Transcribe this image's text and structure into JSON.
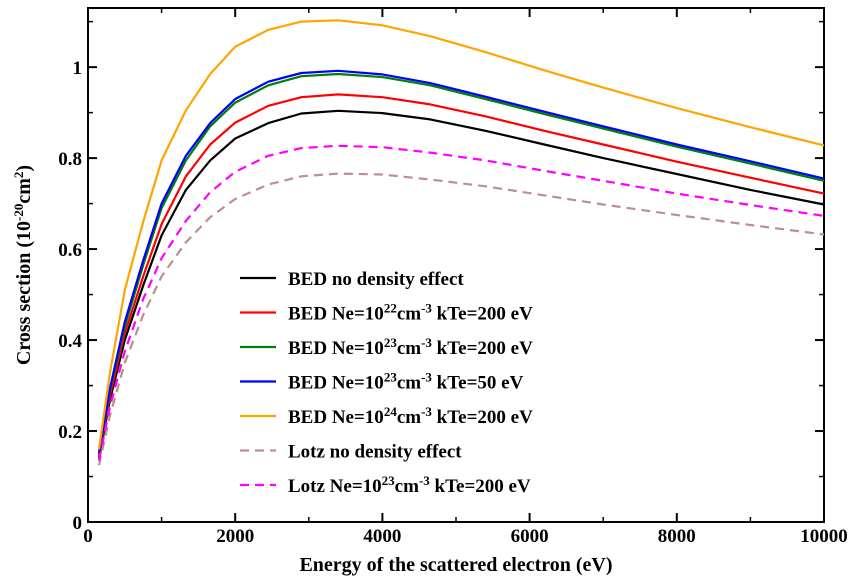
{
  "chart_data": {
    "type": "line",
    "title": "",
    "xlabel": "Energy of the scattered electron (eV)",
    "ylabel_parts": [
      {
        "text": "Cross section (10",
        "sup": false
      },
      {
        "text": "-20",
        "sup": true
      },
      {
        "text": "cm",
        "sup": false
      },
      {
        "text": "2",
        "sup": true
      },
      {
        "text": ")",
        "sup": false
      }
    ],
    "xlim": [
      0,
      10000
    ],
    "ylim": [
      0,
      1.13
    ],
    "x_ticks": [
      0,
      2000,
      4000,
      6000,
      8000,
      10000
    ],
    "x_tick_labels": [
      "0",
      "2000",
      "4000",
      "6000",
      "8000",
      "10000"
    ],
    "y_ticks": [
      0,
      0.2,
      0.4,
      0.6,
      0.8,
      1.0
    ],
    "y_tick_labels": [
      "0",
      "0.2",
      "0.4",
      "0.6",
      "0.8",
      "1"
    ],
    "grid": false,
    "legend_position": "center-left",
    "series": [
      {
        "label_parts": [
          {
            "text": "BED no density effect",
            "sup": false
          }
        ],
        "color": "#000000",
        "dash": "solid",
        "points": [
          [
            150,
            0.14
          ],
          [
            300,
            0.27
          ],
          [
            500,
            0.4
          ],
          [
            750,
            0.52
          ],
          [
            1000,
            0.63
          ],
          [
            1330,
            0.73
          ],
          [
            1660,
            0.795
          ],
          [
            2000,
            0.843
          ],
          [
            2450,
            0.877
          ],
          [
            2900,
            0.898
          ],
          [
            3400,
            0.904
          ],
          [
            4000,
            0.899
          ],
          [
            4650,
            0.885
          ],
          [
            5400,
            0.86
          ],
          [
            6200,
            0.83
          ],
          [
            7000,
            0.8
          ],
          [
            8000,
            0.765
          ],
          [
            9000,
            0.73
          ],
          [
            10000,
            0.698
          ]
        ]
      },
      {
        "label_parts": [
          {
            "text": "BED Ne=10",
            "sup": false
          },
          {
            "text": "22",
            "sup": true
          },
          {
            "text": "cm",
            "sup": false
          },
          {
            "text": "-3",
            "sup": true
          },
          {
            "text": " kTe=200 eV",
            "sup": false
          }
        ],
        "color": "#ff0000",
        "dash": "solid",
        "points": [
          [
            150,
            0.145
          ],
          [
            300,
            0.28
          ],
          [
            500,
            0.415
          ],
          [
            750,
            0.54
          ],
          [
            1000,
            0.655
          ],
          [
            1330,
            0.76
          ],
          [
            1660,
            0.83
          ],
          [
            2000,
            0.878
          ],
          [
            2450,
            0.915
          ],
          [
            2900,
            0.934
          ],
          [
            3400,
            0.94
          ],
          [
            4000,
            0.934
          ],
          [
            4650,
            0.918
          ],
          [
            5400,
            0.892
          ],
          [
            6200,
            0.86
          ],
          [
            7000,
            0.83
          ],
          [
            8000,
            0.792
          ],
          [
            9000,
            0.757
          ],
          [
            10000,
            0.722
          ]
        ]
      },
      {
        "label_parts": [
          {
            "text": "BED Ne=10",
            "sup": false
          },
          {
            "text": "23",
            "sup": true
          },
          {
            "text": "cm",
            "sup": false
          },
          {
            "text": "-3",
            "sup": true
          },
          {
            "text": " kTe=200 eV",
            "sup": false
          }
        ],
        "color": "#008000",
        "dash": "solid",
        "points": [
          [
            150,
            0.15
          ],
          [
            300,
            0.29
          ],
          [
            500,
            0.43
          ],
          [
            750,
            0.565
          ],
          [
            1000,
            0.69
          ],
          [
            1330,
            0.795
          ],
          [
            1660,
            0.87
          ],
          [
            2000,
            0.922
          ],
          [
            2450,
            0.96
          ],
          [
            2900,
            0.98
          ],
          [
            3400,
            0.985
          ],
          [
            4000,
            0.978
          ],
          [
            4650,
            0.96
          ],
          [
            5400,
            0.93
          ],
          [
            6200,
            0.897
          ],
          [
            7000,
            0.865
          ],
          [
            8000,
            0.825
          ],
          [
            9000,
            0.788
          ],
          [
            10000,
            0.75
          ]
        ]
      },
      {
        "label_parts": [
          {
            "text": "BED Ne=10",
            "sup": false
          },
          {
            "text": "23",
            "sup": true
          },
          {
            "text": "cm",
            "sup": false
          },
          {
            "text": "-3",
            "sup": true
          },
          {
            "text": " kTe=50 eV",
            "sup": false
          }
        ],
        "color": "#0000ff",
        "dash": "solid",
        "points": [
          [
            150,
            0.152
          ],
          [
            300,
            0.295
          ],
          [
            500,
            0.44
          ],
          [
            750,
            0.575
          ],
          [
            1000,
            0.7
          ],
          [
            1330,
            0.805
          ],
          [
            1660,
            0.877
          ],
          [
            2000,
            0.93
          ],
          [
            2450,
            0.968
          ],
          [
            2900,
            0.987
          ],
          [
            3400,
            0.992
          ],
          [
            4000,
            0.984
          ],
          [
            4650,
            0.965
          ],
          [
            5400,
            0.935
          ],
          [
            6200,
            0.902
          ],
          [
            7000,
            0.87
          ],
          [
            8000,
            0.83
          ],
          [
            9000,
            0.793
          ],
          [
            10000,
            0.755
          ]
        ]
      },
      {
        "label_parts": [
          {
            "text": "BED Ne=10",
            "sup": false
          },
          {
            "text": "24",
            "sup": true
          },
          {
            "text": "cm",
            "sup": false
          },
          {
            "text": "-3",
            "sup": true
          },
          {
            "text": " kTe=200 eV",
            "sup": false
          }
        ],
        "color": "#ffa500",
        "dash": "solid",
        "points": [
          [
            150,
            0.16
          ],
          [
            300,
            0.33
          ],
          [
            500,
            0.51
          ],
          [
            750,
            0.66
          ],
          [
            1000,
            0.795
          ],
          [
            1330,
            0.905
          ],
          [
            1660,
            0.985
          ],
          [
            2000,
            1.045
          ],
          [
            2450,
            1.082
          ],
          [
            2900,
            1.1
          ],
          [
            3400,
            1.103
          ],
          [
            4000,
            1.092
          ],
          [
            4650,
            1.068
          ],
          [
            5400,
            1.033
          ],
          [
            6200,
            0.993
          ],
          [
            7000,
            0.955
          ],
          [
            8000,
            0.91
          ],
          [
            9000,
            0.868
          ],
          [
            10000,
            0.828
          ]
        ]
      },
      {
        "label_parts": [
          {
            "text": "Lotz no density effect",
            "sup": false
          }
        ],
        "color": "#bc8f8f",
        "dash": "dashed",
        "points": [
          [
            150,
            0.125
          ],
          [
            300,
            0.235
          ],
          [
            500,
            0.35
          ],
          [
            750,
            0.455
          ],
          [
            1000,
            0.54
          ],
          [
            1330,
            0.615
          ],
          [
            1660,
            0.67
          ],
          [
            2000,
            0.71
          ],
          [
            2450,
            0.742
          ],
          [
            2900,
            0.76
          ],
          [
            3400,
            0.766
          ],
          [
            4000,
            0.764
          ],
          [
            4650,
            0.753
          ],
          [
            5400,
            0.738
          ],
          [
            6200,
            0.718
          ],
          [
            7000,
            0.698
          ],
          [
            8000,
            0.675
          ],
          [
            9000,
            0.653
          ],
          [
            10000,
            0.632
          ]
        ]
      },
      {
        "label_parts": [
          {
            "text": "Lotz Ne=10",
            "sup": false
          },
          {
            "text": "23",
            "sup": true
          },
          {
            "text": "cm",
            "sup": false
          },
          {
            "text": "-3",
            "sup": true
          },
          {
            "text": " kTe=200 eV",
            "sup": false
          }
        ],
        "color": "#ff00ff",
        "dash": "dashed",
        "points": [
          [
            150,
            0.135
          ],
          [
            300,
            0.255
          ],
          [
            500,
            0.375
          ],
          [
            750,
            0.49
          ],
          [
            1000,
            0.58
          ],
          [
            1330,
            0.662
          ],
          [
            1660,
            0.725
          ],
          [
            2000,
            0.77
          ],
          [
            2450,
            0.805
          ],
          [
            2900,
            0.822
          ],
          [
            3400,
            0.827
          ],
          [
            4000,
            0.824
          ],
          [
            4650,
            0.812
          ],
          [
            5400,
            0.795
          ],
          [
            6200,
            0.772
          ],
          [
            7000,
            0.75
          ],
          [
            8000,
            0.722
          ],
          [
            9000,
            0.697
          ],
          [
            10000,
            0.673
          ]
        ]
      }
    ]
  }
}
